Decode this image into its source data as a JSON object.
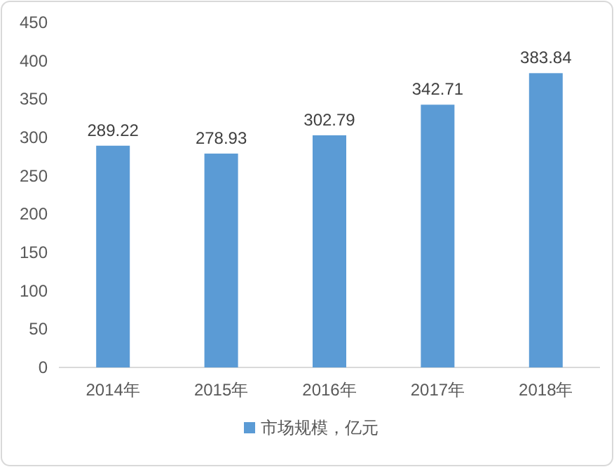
{
  "chart_data": {
    "type": "bar",
    "categories": [
      "2014年",
      "2015年",
      "2016年",
      "2017年",
      "2018年"
    ],
    "series": [
      {
        "name": "市场规模，亿元",
        "color": "#5b9bd5",
        "values": [
          289.22,
          278.93,
          302.79,
          342.71,
          383.84
        ]
      }
    ],
    "ylim": [
      0,
      450
    ],
    "yticks": [
      0,
      50,
      100,
      150,
      200,
      250,
      300,
      350,
      400,
      450
    ],
    "data_labels": true,
    "legend": "bottom",
    "grid": false
  }
}
